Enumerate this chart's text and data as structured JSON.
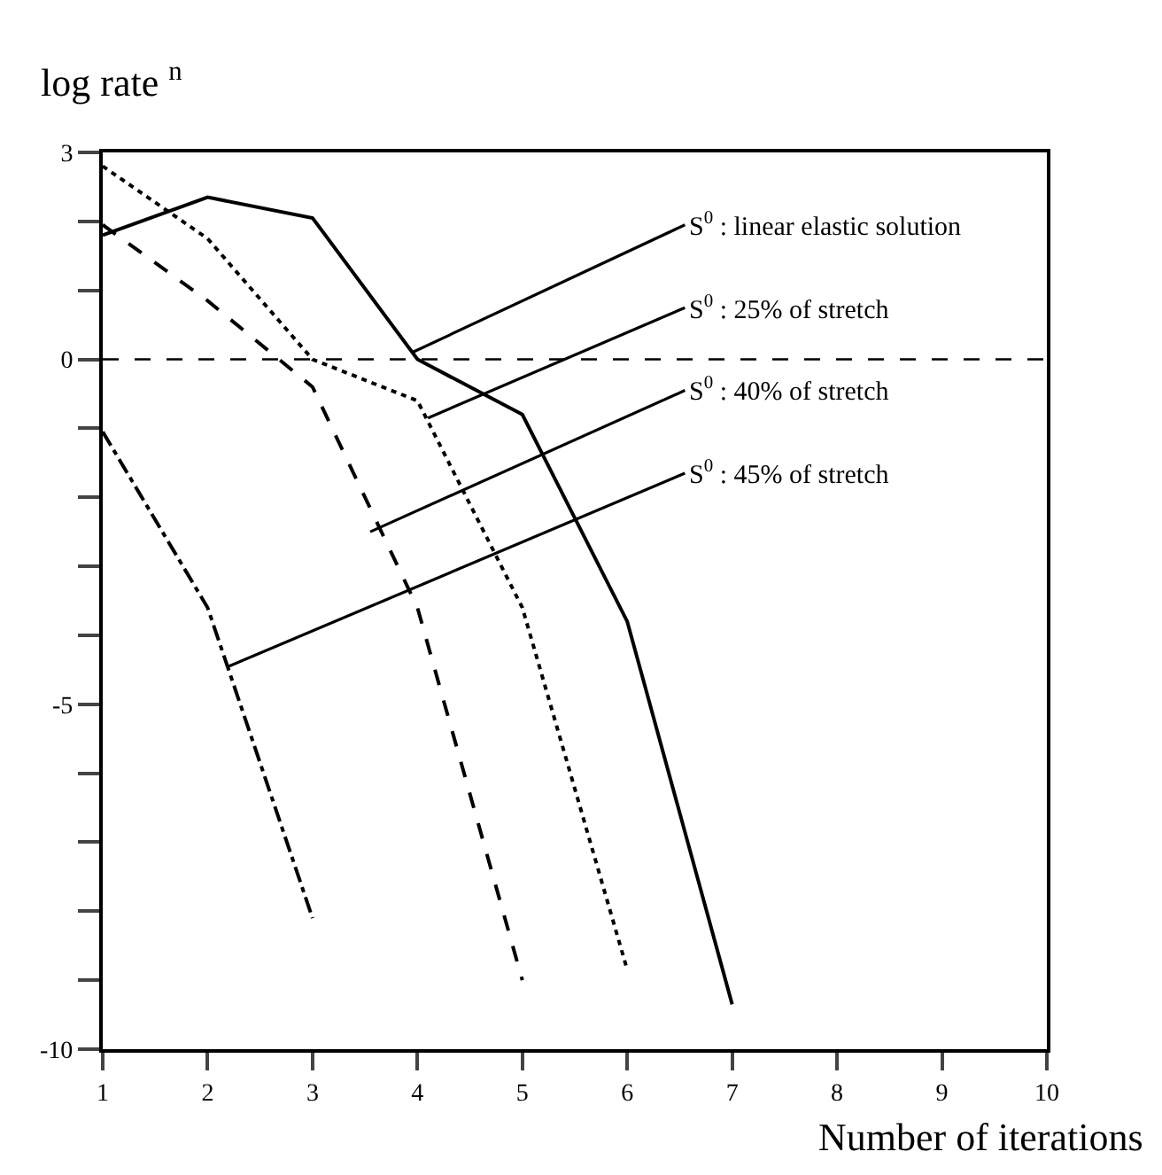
{
  "chart_data": {
    "type": "line",
    "xlabel": "Number of iterations",
    "ylabel": "log rate $^{n}$",
    "x": [
      1,
      2,
      3,
      4,
      5,
      6,
      7
    ],
    "series": [
      {
        "color": "#000000",
        "line_style": "solid",
        "values": [
          1.8,
          2.35,
          2.05,
          0.0,
          -0.8,
          -3.8,
          -9.35
        ]
      },
      {
        "color": "#000000",
        "line_style": "dotted",
        "x": [
          1,
          2,
          3,
          4,
          5,
          6
        ],
        "values": [
          2.8,
          1.75,
          0.0,
          -0.6,
          -3.6,
          -8.85
        ]
      },
      {
        "color": "#000000",
        "line_style": "dashed",
        "x": [
          1,
          2,
          3,
          4,
          5
        ],
        "values": [
          1.95,
          0.85,
          -0.4,
          -3.6,
          -9.0
        ]
      },
      {
        "color": "#000000",
        "line_style": "dashdot",
        "x": [
          1,
          2,
          3
        ],
        "values": [
          -1.05,
          -3.6,
          -8.1
        ]
      }
    ],
    "annotations": [
      {
        "text": "S$^{0}$ : linear elastic solution",
        "x": 3.95,
        "y": 0.1
      },
      {
        "text": "S$^{0}$ : 25% of stretch",
        "x": 4.1,
        "y": -0.85
      },
      {
        "text": "S$^{0}$ : 40% of stretch",
        "x": 3.55,
        "y": -2.5
      },
      {
        "text": "S$^{0}$ : 45% of stretch",
        "x": 2.2,
        "y": -4.45
      }
    ],
    "ref_lines": [
      {
        "axis": "y",
        "value": 0,
        "color": "#000000",
        "line_style": "dashed"
      }
    ],
    "xlim": [
      1,
      10
    ],
    "xticks": [
      1,
      2,
      3,
      4,
      5,
      6,
      7,
      8,
      9,
      10
    ],
    "ylim": [
      -10,
      3
    ],
    "yticks": [
      3,
      {
        "value": 2,
        "label": null
      },
      {
        "value": 1,
        "label": null
      },
      0,
      {
        "value": -1,
        "label": null
      },
      {
        "value": -2,
        "label": null
      },
      {
        "value": -3,
        "label": null
      },
      {
        "value": -4,
        "label": null
      },
      -5,
      {
        "value": -6,
        "label": null
      },
      {
        "value": -7,
        "label": null
      },
      {
        "value": -8,
        "label": null
      },
      {
        "value": -9,
        "label": null
      },
      -10
    ],
    "marker": "none"
  }
}
